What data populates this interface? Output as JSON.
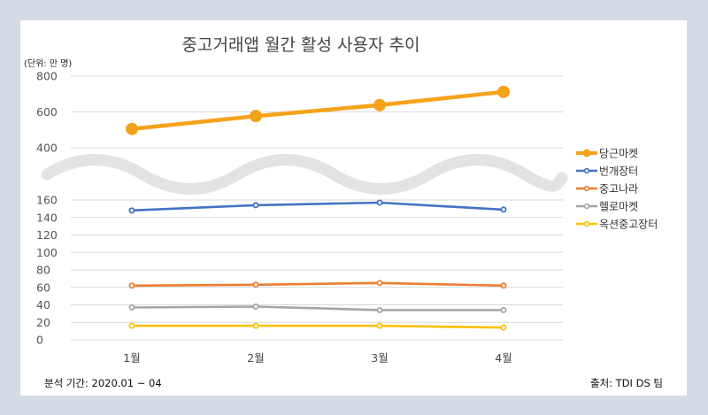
{
  "chart_data": {
    "type": "line",
    "title": "중고거래앱 월간 활성 사용자 추이",
    "unit_label": "(단위: 만 명)",
    "categories": [
      "1월",
      "2월",
      "3월",
      "4월"
    ],
    "y_axis": {
      "broken": true,
      "upper_range": [
        400,
        800
      ],
      "upper_ticks": [
        "800",
        "600",
        "400"
      ],
      "lower_range": [
        0,
        160
      ],
      "lower_ticks": [
        "160",
        "140",
        "120",
        "100",
        "80",
        "60",
        "40",
        "20",
        "0"
      ]
    },
    "grid": true,
    "legend_position": "right",
    "series": [
      {
        "name": "당근마켓",
        "color": "#f5a21b",
        "values": [
          505,
          577,
          638,
          712
        ]
      },
      {
        "name": "번개장터",
        "color": "#4472c4",
        "values": [
          148,
          154,
          157,
          149
        ]
      },
      {
        "name": "중고나라",
        "color": "#ed7d31",
        "values": [
          62,
          63,
          65,
          62
        ]
      },
      {
        "name": "헬로마켓",
        "color": "#a5a5a5",
        "values": [
          37,
          38,
          34,
          34
        ]
      },
      {
        "name": "옥션중고장터",
        "color": "#ffc000",
        "values": [
          16,
          16,
          16,
          14
        ]
      }
    ]
  },
  "footer": {
    "period": "분석 기간: 2020.01 ~ 04",
    "source": "출처: TDI DS 팀"
  }
}
